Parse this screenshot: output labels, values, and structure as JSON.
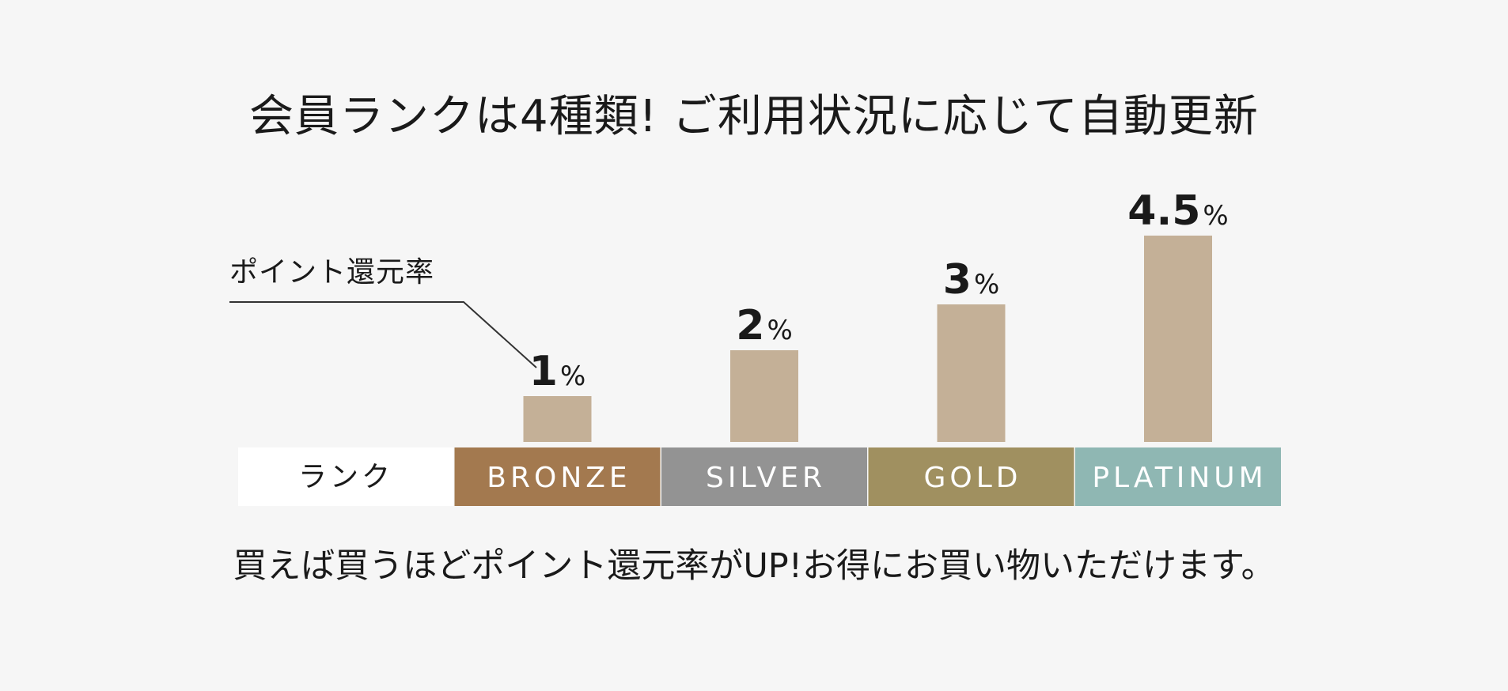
{
  "title": "会員ランクは4種類! ご利用状況に応じて自動更新",
  "footer": "買えば買うほどポイント還元率がUP!お得にお買い物いただけます。",
  "chart_data": {
    "type": "bar",
    "ylabel": "ポイント還元率",
    "row_label": "ランク",
    "categories": [
      "BRONZE",
      "SILVER",
      "GOLD",
      "PLATINUM"
    ],
    "values": [
      1,
      2,
      3,
      4.5
    ],
    "value_labels": [
      "1",
      "2",
      "3",
      "4.5"
    ],
    "unit": "%",
    "bar_color": "#c4b097",
    "rank_colors": [
      "#a3794f",
      "#939393",
      "#a09060",
      "#8fb7b3"
    ],
    "row_label_bg": "#ffffff"
  }
}
